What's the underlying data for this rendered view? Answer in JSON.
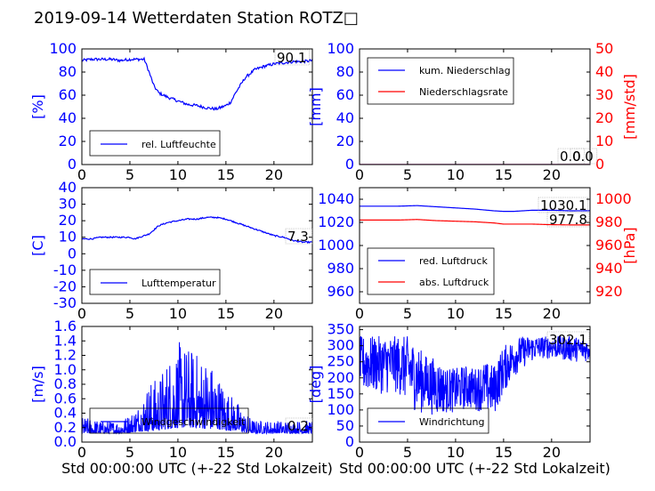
{
  "title": "2019-09-14 Wetterdaten Station ROTZ",
  "title_suffix_glyph": "□",
  "colors": {
    "primary": "#0000ff",
    "secondary": "#ff0000",
    "black": "#000000"
  },
  "chart_data": [
    {
      "id": "humidity",
      "type": "line",
      "xlim": [
        0,
        24
      ],
      "ylim": [
        0,
        100
      ],
      "xticks": [
        0,
        5,
        10,
        15,
        20
      ],
      "yticks": [
        0,
        20,
        40,
        60,
        80,
        100
      ],
      "ylabel": "[%]",
      "xlabel": "",
      "series": [
        {
          "name": "rel. Luftfeuchte",
          "color": "#0000ff",
          "x": [
            0,
            1,
            2,
            3,
            4,
            5,
            6,
            6.5,
            7,
            7.5,
            8,
            9,
            10,
            11,
            12,
            13,
            14,
            15,
            15.5,
            16,
            17,
            18,
            19,
            20,
            21,
            22,
            23,
            24
          ],
          "y": [
            90,
            91,
            91,
            91,
            90,
            91,
            91,
            91,
            80,
            68,
            62,
            58,
            55,
            52,
            51,
            49,
            48,
            51,
            54,
            62,
            75,
            82,
            85,
            87,
            88,
            89,
            89,
            90
          ]
        }
      ],
      "legend": "bottom-center",
      "annotations": [
        {
          "text": "90.1",
          "color": "#000000"
        }
      ]
    },
    {
      "id": "precip",
      "type": "line",
      "xlim": [
        0,
        24
      ],
      "ylim": [
        0,
        100
      ],
      "y2lim": [
        0,
        50
      ],
      "xticks": [
        0,
        5,
        10,
        15,
        20
      ],
      "yticks": [
        0,
        20,
        40,
        60,
        80,
        100
      ],
      "y2ticks": [
        0,
        10,
        20,
        30,
        40,
        50
      ],
      "ylabel": "[mm]",
      "y2label": "[mm/std]",
      "xlabel": "",
      "series": [
        {
          "name": "kum. Niederschlag",
          "color": "#0000ff",
          "axis": "left",
          "x": [
            0,
            24
          ],
          "y": [
            0,
            0
          ]
        },
        {
          "name": "Niederschlagsrate",
          "color": "#ff0000",
          "axis": "right",
          "x": [
            0,
            24
          ],
          "y": [
            0,
            0
          ]
        }
      ],
      "legend": "top-left",
      "annotations": [
        {
          "text": "0.0",
          "color": "#000000"
        },
        {
          "text": "0.0",
          "color": "#000000"
        }
      ]
    },
    {
      "id": "temperature",
      "type": "line",
      "xlim": [
        0,
        24
      ],
      "ylim": [
        -30,
        40
      ],
      "xticks": [
        0,
        5,
        10,
        15,
        20
      ],
      "yticks": [
        -30,
        -20,
        -10,
        0,
        10,
        20,
        30,
        40
      ],
      "ylabel": "[C]",
      "xlabel": "",
      "series": [
        {
          "name": "Lufttemperatur",
          "color": "#0000ff",
          "x": [
            0,
            1,
            2,
            3,
            4,
            5,
            5.5,
            6,
            7,
            8,
            9,
            10,
            11,
            12,
            13,
            14,
            15,
            16,
            17,
            18,
            19,
            20,
            21,
            22,
            23,
            24
          ],
          "y": [
            9,
            9,
            10,
            10,
            10,
            10,
            9,
            10,
            12,
            17,
            19,
            20,
            21,
            21,
            22,
            22,
            21,
            19,
            17,
            15,
            13,
            11,
            10,
            8,
            7,
            7
          ]
        }
      ],
      "legend": "bottom-center",
      "annotations": [
        {
          "text": "7.3",
          "color": "#000000"
        }
      ]
    },
    {
      "id": "pressure",
      "type": "line",
      "xlim": [
        0,
        24
      ],
      "ylim": [
        950,
        1050
      ],
      "y2lim": [
        910,
        1010
      ],
      "xticks": [
        0,
        5,
        10,
        15,
        20
      ],
      "yticks": [
        960,
        980,
        1000,
        1020,
        1040
      ],
      "y2ticks": [
        920,
        940,
        960,
        980,
        1000
      ],
      "ylabel": "",
      "y2label": "[hPa]",
      "xlabel": "",
      "series": [
        {
          "name": "red. Luftdruck",
          "color": "#0000ff",
          "axis": "left",
          "x": [
            0,
            2,
            4,
            6,
            8,
            10,
            12,
            14,
            15,
            16,
            18,
            20,
            22,
            24
          ],
          "y": [
            1034,
            1034,
            1034,
            1034.5,
            1033.5,
            1032.5,
            1031.5,
            1030,
            1029.5,
            1029.5,
            1030.5,
            1030.5,
            1030,
            1030.1
          ]
        },
        {
          "name": "abs. Luftdruck",
          "color": "#ff0000",
          "axis": "right",
          "x": [
            0,
            2,
            4,
            6,
            8,
            10,
            12,
            14,
            15,
            16,
            18,
            20,
            22,
            24
          ],
          "y": [
            982,
            982,
            982,
            982.5,
            981.5,
            981,
            980.5,
            979.5,
            978.5,
            978.5,
            978.5,
            978,
            977.8,
            977.8
          ]
        }
      ],
      "legend": "bottom-left",
      "annotations": [
        {
          "text": "1030.1",
          "color": "#000000"
        },
        {
          "text": "977.8",
          "color": "#000000"
        }
      ]
    },
    {
      "id": "wind_speed",
      "type": "line",
      "xlim": [
        0,
        24
      ],
      "ylim": [
        0,
        1.6
      ],
      "xticks": [
        0,
        5,
        10,
        15,
        20
      ],
      "yticks": [
        0.0,
        0.2,
        0.4,
        0.6,
        0.8,
        1.0,
        1.2,
        1.4,
        1.6
      ],
      "ytick_labels": [
        "0.0",
        "0.2",
        "0.4",
        "0.6",
        "0.8",
        "1.0",
        "1.2",
        "1.4",
        "1.6"
      ],
      "ylabel": "[m/s]",
      "xlabel": "Std 00:00:00 UTC (+-22 Std Lokalzeit)",
      "series": [
        {
          "name": "Windgeschwindigkeit",
          "color": "#0000ff",
          "envelope_x": [
            0,
            2,
            4,
            5,
            6,
            7,
            8,
            9,
            10,
            11,
            12,
            13,
            14,
            15,
            16,
            17,
            18,
            20,
            22,
            24
          ],
          "envelope_min": [
            0.12,
            0.12,
            0.12,
            0.13,
            0.15,
            0.15,
            0.16,
            0.18,
            0.2,
            0.2,
            0.2,
            0.18,
            0.18,
            0.16,
            0.16,
            0.13,
            0.12,
            0.12,
            0.12,
            0.12
          ],
          "envelope_max": [
            0.35,
            0.3,
            0.3,
            0.4,
            0.55,
            0.85,
            0.9,
            1.2,
            1.4,
            1.35,
            1.25,
            1.2,
            1.0,
            0.75,
            0.6,
            0.4,
            0.3,
            0.3,
            0.3,
            0.3
          ]
        }
      ],
      "legend": "bottom-center",
      "annotations": [
        {
          "text": "0.2",
          "color": "#000000"
        }
      ]
    },
    {
      "id": "wind_dir",
      "type": "line",
      "xlim": [
        0,
        24
      ],
      "ylim": [
        0,
        360
      ],
      "xticks": [
        0,
        5,
        10,
        15,
        20
      ],
      "yticks": [
        0,
        50,
        100,
        150,
        200,
        250,
        300,
        350
      ],
      "ylabel": "[deg]",
      "xlabel": "Std 00:00:00 UTC (+-22 Std Lokalzeit)",
      "series": [
        {
          "name": "Windrichtung",
          "color": "#0000ff",
          "envelope_x": [
            0,
            2,
            4,
            5,
            6,
            7,
            8,
            9,
            10,
            11,
            12,
            13,
            14,
            15,
            16,
            17,
            18,
            19,
            20,
            22,
            24
          ],
          "envelope_min": [
            150,
            150,
            150,
            120,
            90,
            90,
            80,
            90,
            90,
            100,
            100,
            90,
            80,
            150,
            200,
            230,
            250,
            260,
            260,
            250,
            250
          ],
          "envelope_max": [
            330,
            330,
            330,
            330,
            300,
            270,
            260,
            230,
            230,
            240,
            230,
            250,
            240,
            300,
            320,
            330,
            330,
            330,
            330,
            330,
            320
          ]
        }
      ],
      "legend": "bottom-left",
      "annotations": [
        {
          "text": "302.1",
          "color": "#000000"
        }
      ]
    }
  ]
}
